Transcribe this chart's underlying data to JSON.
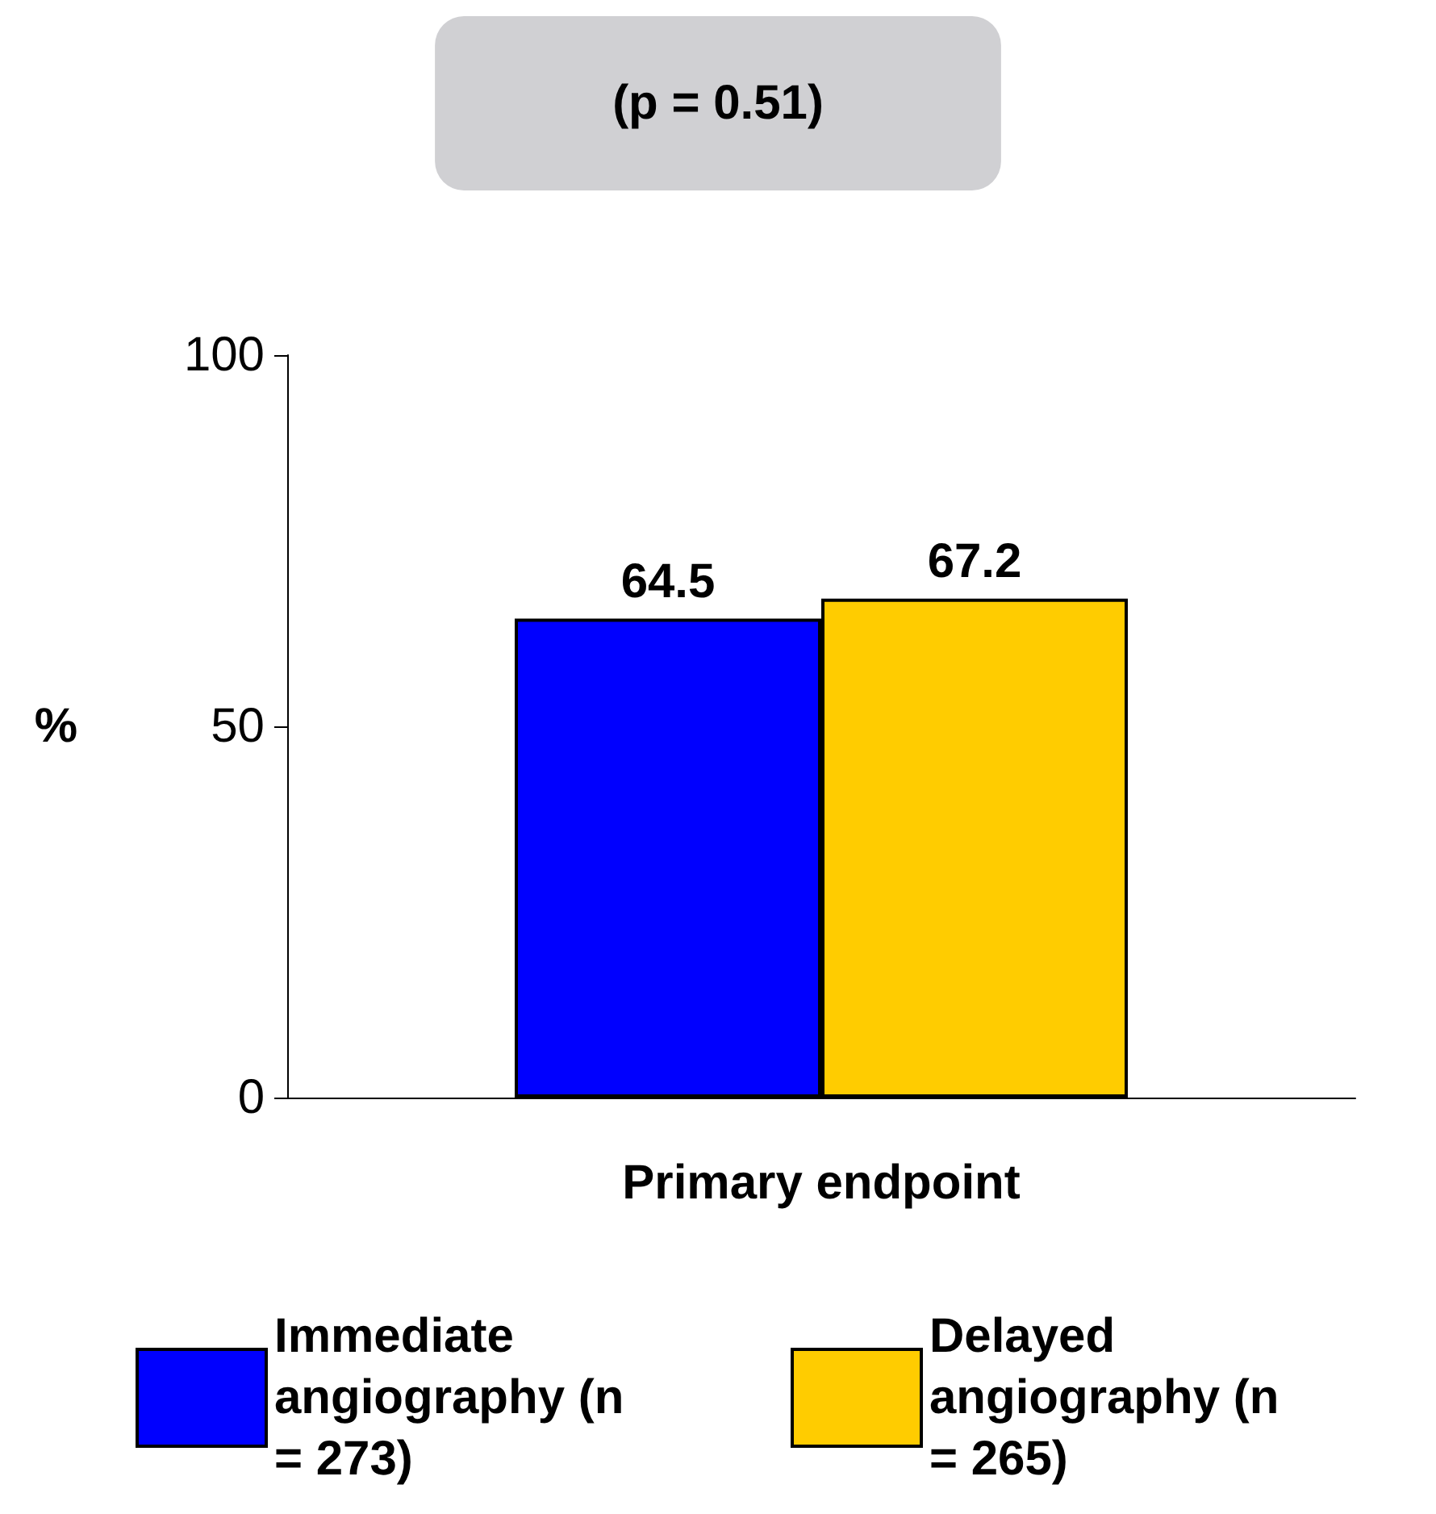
{
  "chart_data": {
    "type": "bar",
    "title": "(p = 0.51)",
    "ylabel": "%",
    "categories": [
      "Primary endpoint"
    ],
    "series": [
      {
        "name": "Immediate angiography (n = 273)",
        "color": "#0000ff",
        "values": [
          64.5
        ]
      },
      {
        "name": "Delayed angiography (n = 265)",
        "color": "#ffcc00",
        "values": [
          67.2
        ]
      }
    ],
    "ylim": [
      0,
      100
    ],
    "yticks": [
      0,
      50,
      100
    ],
    "data_labels": true,
    "grid": false,
    "legend": "bottom"
  }
}
